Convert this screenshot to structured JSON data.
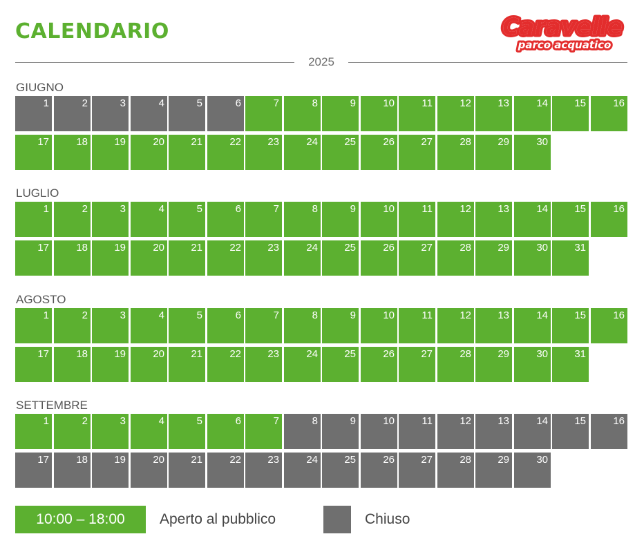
{
  "title": "CALENDARIO",
  "logo": {
    "name": "Caravelle",
    "subtitle": "parco acquatico"
  },
  "year": "2025",
  "colors": {
    "open": "#5cb030",
    "closed": "#6f6f6f",
    "title": "#5cb030",
    "logo_red": "#e32d2d"
  },
  "months": [
    {
      "name": "GIUGNO",
      "days": 30,
      "open": [
        7,
        8,
        9,
        10,
        11,
        12,
        13,
        14,
        15,
        16,
        17,
        18,
        19,
        20,
        21,
        22,
        23,
        24,
        25,
        26,
        27,
        28,
        29,
        30
      ]
    },
    {
      "name": "LUGLIO",
      "days": 31,
      "open": [
        1,
        2,
        3,
        4,
        5,
        6,
        7,
        8,
        9,
        10,
        11,
        12,
        13,
        14,
        15,
        16,
        17,
        18,
        19,
        20,
        21,
        22,
        23,
        24,
        25,
        26,
        27,
        28,
        29,
        30,
        31
      ]
    },
    {
      "name": "AGOSTO",
      "days": 31,
      "open": [
        1,
        2,
        3,
        4,
        5,
        6,
        7,
        8,
        9,
        10,
        11,
        12,
        13,
        14,
        15,
        16,
        17,
        18,
        19,
        20,
        21,
        22,
        23,
        24,
        25,
        26,
        27,
        28,
        29,
        30,
        31
      ]
    },
    {
      "name": "SETTEMBRE",
      "days": 30,
      "open": [
        1,
        2,
        3,
        4,
        5,
        6,
        7
      ]
    }
  ],
  "legend": {
    "open_hours": "10:00 – 18:00",
    "open_label": "Aperto al pubblico",
    "closed_label": "Chiuso"
  }
}
